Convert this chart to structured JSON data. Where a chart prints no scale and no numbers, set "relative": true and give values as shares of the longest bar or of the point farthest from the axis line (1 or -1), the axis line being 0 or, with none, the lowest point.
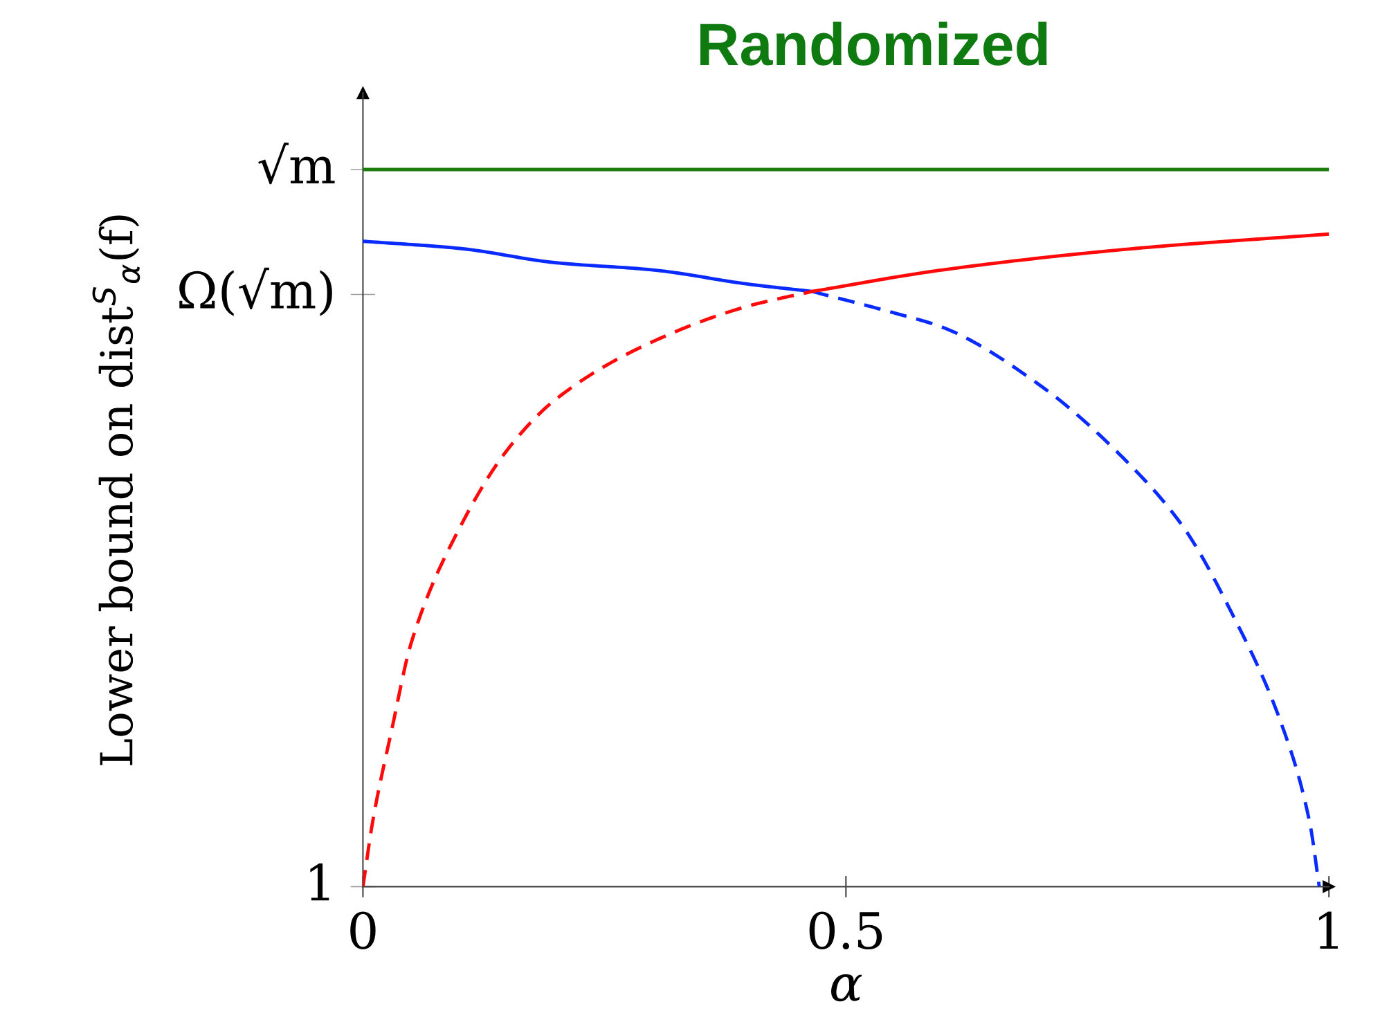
{
  "chart_data": {
    "type": "line",
    "title": "Randomized",
    "xlabel": "α",
    "ylabel": "Lower bound on dist$^{S}$$_{α}$(f)",
    "xlim": [
      0,
      1
    ],
    "xticks": [
      0,
      0.5,
      1
    ],
    "relative": true,
    "annotations": [
      {
        "text": "1",
        "x": 0,
        "y": 0
      },
      "Ω(√m)",
      {
        "text": "√m",
        "x": 0,
        "y": 1
      }
    ],
    "grid": false,
    "legend": false,
    "marker": "none",
    "series": [
      {
        "type": "line",
        "color": "#1e7d0f",
        "line_style": "solid",
        "x": [
          0,
          1
        ],
        "values": [
          1,
          1
        ]
      },
      {
        "color": "#0a2bff",
        "line_style": "solid",
        "x": [
          0,
          0.1,
          0.2,
          0.3,
          0.4,
          0.465
        ],
        "values": [
          0.9,
          0.89,
          0.87,
          0.86,
          0.84,
          0.83
        ]
      },
      {
        "color": "#0a2bff",
        "line_style": "dashed",
        "x": [
          0.465,
          0.55,
          0.6,
          0.7,
          0.8,
          0.85,
          0.9,
          0.95,
          0.98,
          0.99
        ],
        "values": [
          0.83,
          0.8,
          0.78,
          0.7,
          0.58,
          0.5,
          0.38,
          0.23,
          0.09,
          0
        ]
      },
      {
        "color": "#ff0a0a",
        "line_style": "dashed",
        "x": [
          0,
          0.01,
          0.03,
          0.05,
          0.1,
          0.15,
          0.2,
          0.3,
          0.4,
          0.465
        ],
        "values": [
          0,
          0.09,
          0.22,
          0.34,
          0.5,
          0.61,
          0.68,
          0.76,
          0.81,
          0.83
        ]
      },
      {
        "color": "#ff0a0a",
        "line_style": "solid",
        "x": [
          0.465,
          0.6,
          0.8,
          1
        ],
        "values": [
          0.83,
          0.86,
          0.89,
          0.91
        ]
      }
    ]
  }
}
